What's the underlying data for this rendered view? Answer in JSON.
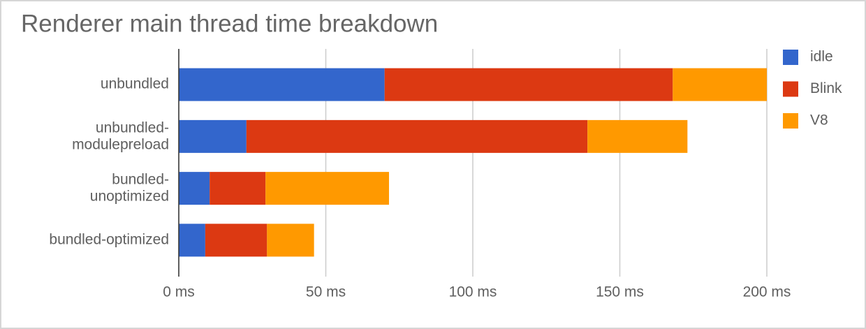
{
  "chart_data": {
    "type": "stacked-bar-horizontal",
    "title": "Renderer main thread time breakdown",
    "categories": [
      "unbundled",
      "unbundled-\nmodulepreload",
      "bundled-\nunoptimized",
      "bundled-optimized"
    ],
    "series": [
      {
        "name": "idle",
        "color": "#3366cc",
        "values": [
          70,
          23,
          10.5,
          9
        ]
      },
      {
        "name": "Blink",
        "color": "#dc3912",
        "values": [
          98,
          116,
          19,
          21
        ]
      },
      {
        "name": "V8",
        "color": "#ff9900",
        "values": [
          32,
          34,
          42,
          16
        ]
      }
    ],
    "xlim": [
      0,
      200
    ],
    "xticks": [
      {
        "value": 0,
        "label": "0 ms"
      },
      {
        "value": 50,
        "label": "50 ms"
      },
      {
        "value": 100,
        "label": "100 ms"
      },
      {
        "value": 150,
        "label": "150 ms"
      },
      {
        "value": 200,
        "label": "200 ms"
      }
    ],
    "grid": true,
    "legend": "right"
  }
}
